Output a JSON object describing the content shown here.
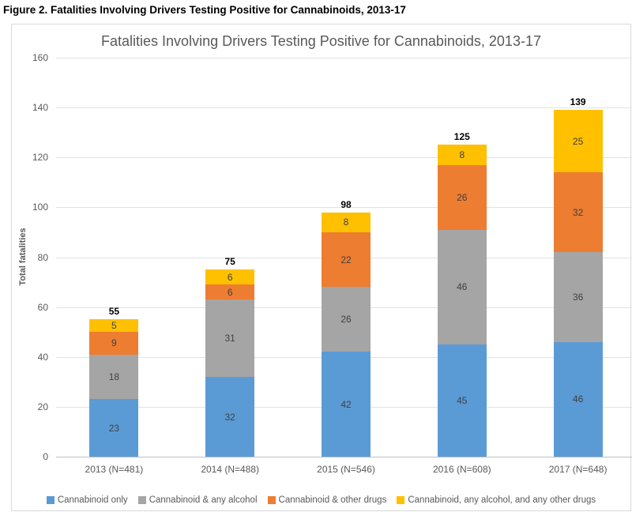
{
  "figure_caption": "Figure 2. Fatalities Involving Drivers Testing Positive for Cannabinoids, 2013-17",
  "chart_data": {
    "type": "bar",
    "stacked": true,
    "title": "Fatalities Involving Drivers Testing Positive for Cannabinoids, 2013-17",
    "xlabel": "",
    "ylabel": "Total fatalities",
    "ylim": [
      0,
      160
    ],
    "ytick_step": 20,
    "ytick_labels": [
      "0",
      "20",
      "40",
      "60",
      "80",
      "100",
      "120",
      "140",
      "160"
    ],
    "grid": true,
    "legend_position": "bottom",
    "categories": [
      "2013 (N=481)",
      "2014 (N=488)",
      "2015 (N=546)",
      "2016 (N=608)",
      "2017 (N=648)"
    ],
    "series": [
      {
        "name": "Cannabinoid only",
        "color": "#5B9BD5",
        "values": [
          23,
          32,
          42,
          45,
          46
        ]
      },
      {
        "name": "Cannabinoid & any alcohol",
        "color": "#A5A5A5",
        "values": [
          18,
          31,
          26,
          46,
          36
        ]
      },
      {
        "name": "Cannabinoid & other drugs",
        "color": "#ED7D31",
        "values": [
          9,
          6,
          22,
          26,
          32
        ]
      },
      {
        "name": "Cannabinoid, any alcohol, and any other drugs",
        "color": "#FFC000",
        "values": [
          5,
          6,
          8,
          8,
          25
        ]
      }
    ],
    "totals": [
      55,
      75,
      98,
      125,
      139
    ]
  },
  "colors": {
    "title_text": "#595959",
    "axis_text": "#595959",
    "segment_label_text": "#404040",
    "total_label_text": "#000000",
    "gridline": "#e2e2e2",
    "axis_line": "#bfbfbf",
    "chart_border": "#d9d9d9",
    "background": "#ffffff"
  }
}
